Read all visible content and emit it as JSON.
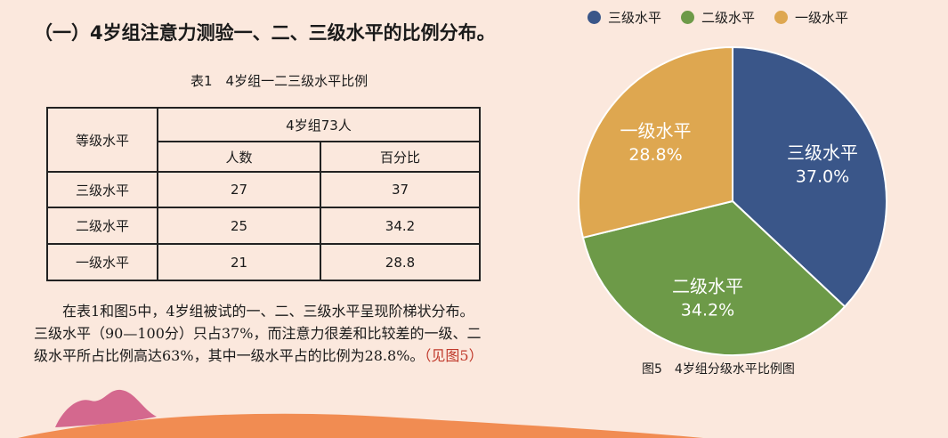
{
  "title": "（一）4岁组注意力测验一、二、三级水平的比例分布。",
  "table": {
    "caption": "表1　4岁组一二三级水平比例",
    "header_level": "等级水平",
    "header_group": "4岁组73人",
    "header_count": "人数",
    "header_percent": "百分比",
    "rows": [
      {
        "level": "三级水平",
        "count": "27",
        "percent": "37"
      },
      {
        "level": "二级水平",
        "count": "25",
        "percent": "34.2"
      },
      {
        "level": "一级水平",
        "count": "21",
        "percent": "28.8"
      }
    ]
  },
  "paragraph": {
    "text": "在表1和图5中，4岁组被试的一、二、三级水平呈现阶梯状分布。三级水平（90—100分）只占37%，而注意力很差和比较差的一级、二级水平所占比例高达63%，其中一级水平占的比例为28.8%。",
    "reference": "（见图5）"
  },
  "figure_caption": "图5　4岁组分级水平比例图",
  "chart_data": {
    "type": "pie",
    "title": "",
    "legend_position": "top",
    "slices": [
      {
        "label": "三级水平",
        "value": 37.0,
        "value_label": "37.0%",
        "color": "#3a5689"
      },
      {
        "label": "二级水平",
        "value": 34.2,
        "value_label": "34.2%",
        "color": "#6d9a48"
      },
      {
        "label": "一级水平",
        "value": 28.8,
        "value_label": "28.8%",
        "color": "#dea750"
      }
    ]
  },
  "colors": {
    "background": "#fbe8dd",
    "slice_border": "#ffffff",
    "decor_orange": "#ef7b3a",
    "decor_pink": "#d4688e"
  }
}
